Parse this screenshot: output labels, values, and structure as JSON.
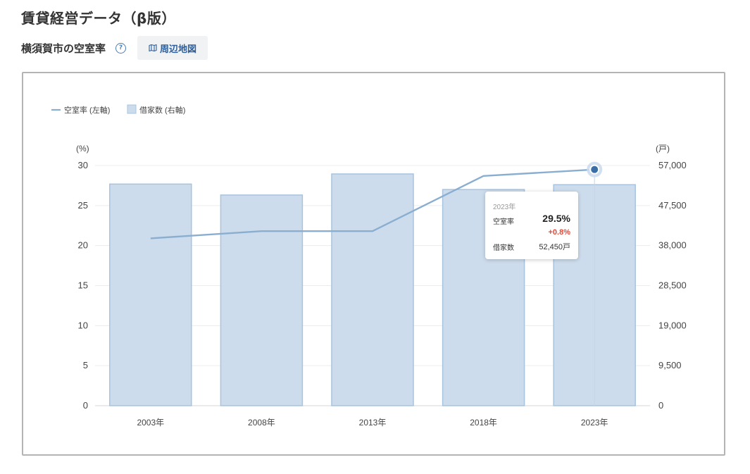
{
  "page_title": "賃貸経営データ（β版）",
  "subheader": {
    "title": "横須賀市の空室率",
    "help_icon_glyph": "?",
    "map_button_label": "周辺地図",
    "map_icon": "map-icon"
  },
  "colors": {
    "line": "#8aaed0",
    "bar_fill": "#cddcec",
    "bar_stroke": "#a8c3de",
    "point": "#3b6ea5",
    "change_positive": "#e04a3a",
    "link": "#2c5f9e"
  },
  "chart_data": {
    "type": "bar",
    "legend": [
      {
        "label": "空室率 (左軸)",
        "kind": "line"
      },
      {
        "label": "借家数 (右軸)",
        "kind": "bar"
      }
    ],
    "legend_position": "top-left",
    "categories": [
      "2003年",
      "2008年",
      "2013年",
      "2018年",
      "2023年"
    ],
    "series": [
      {
        "name": "借家数 (右軸)",
        "type": "bar",
        "axis": "right",
        "values": [
          52600,
          50000,
          55000,
          51300,
          52450
        ]
      },
      {
        "name": "空室率 (左軸)",
        "type": "line",
        "axis": "left",
        "values": [
          20.9,
          21.8,
          21.8,
          28.7,
          29.5
        ]
      }
    ],
    "y_left": {
      "unit_label": "(%)",
      "ticks": [
        0,
        5,
        10,
        15,
        20,
        25,
        30
      ],
      "tick_labels": [
        "0",
        "5",
        "10",
        "15",
        "20",
        "25",
        "30"
      ],
      "ylim": [
        0,
        30
      ]
    },
    "y_right": {
      "unit_label": "(戸)",
      "ticks": [
        0,
        9500,
        19000,
        28500,
        38000,
        47500,
        57000
      ],
      "tick_labels": [
        "0",
        "9,500",
        "19,000",
        "28,500",
        "38,000",
        "47,500",
        "57,000"
      ],
      "ylim": [
        0,
        57000
      ]
    },
    "grid": true,
    "highlighted_index": 4
  },
  "tooltip": {
    "year": "2023年",
    "label1": "空室率",
    "value1": "29.5%",
    "change": "+0.8%",
    "label2": "借家数",
    "value2": "52,450戸"
  }
}
